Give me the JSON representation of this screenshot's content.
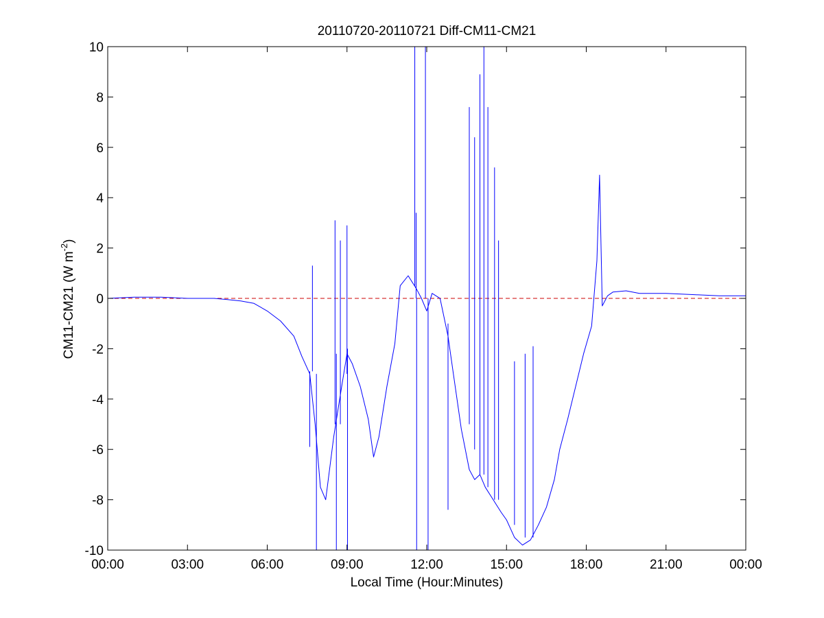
{
  "chart_data": {
    "type": "line",
    "title": "20110720-20110721 Diff-CM11-CM21",
    "xlabel": "Local Time (Hour:Minutes)",
    "ylabel": {
      "main": "CM11-CM21 (W m",
      "sup": "-2",
      "close": ")"
    },
    "xlim": [
      0,
      24
    ],
    "ylim": [
      -10,
      10
    ],
    "x_ticks": [
      {
        "value": 0,
        "label": "00:00"
      },
      {
        "value": 3,
        "label": "03:00"
      },
      {
        "value": 6,
        "label": "06:00"
      },
      {
        "value": 9,
        "label": "09:00"
      },
      {
        "value": 12,
        "label": "12:00"
      },
      {
        "value": 15,
        "label": "15:00"
      },
      {
        "value": 18,
        "label": "18:00"
      },
      {
        "value": 21,
        "label": "21:00"
      },
      {
        "value": 24,
        "label": "00:00"
      }
    ],
    "y_ticks": [
      {
        "value": 10,
        "label": "10"
      },
      {
        "value": 8,
        "label": "8"
      },
      {
        "value": 6,
        "label": "6"
      },
      {
        "value": 4,
        "label": "4"
      },
      {
        "value": 2,
        "label": "2"
      },
      {
        "value": 0,
        "label": "0"
      },
      {
        "value": -2,
        "label": "-2"
      },
      {
        "value": -4,
        "label": "-4"
      },
      {
        "value": -6,
        "label": "-6"
      },
      {
        "value": -8,
        "label": "-8"
      },
      {
        "value": -10,
        "label": "-10"
      }
    ],
    "grid": false,
    "colors": {
      "series": "#0000ff",
      "reference": "#cc0000",
      "axes": "#000000"
    },
    "reference_line": {
      "y": 0,
      "style": "dashed"
    },
    "series": [
      {
        "x": [
          0,
          1,
          2,
          3,
          4,
          4.5,
          5,
          5.5,
          6,
          6.5,
          7,
          7.3,
          7.6,
          7.8,
          8,
          8.2,
          8.5,
          8.8,
          9,
          9.2,
          9.5,
          9.8,
          10,
          10.2,
          10.5,
          10.8,
          11,
          11.3,
          11.6,
          11.8,
          12,
          12.2,
          12.5,
          12.8,
          13,
          13.3,
          13.6,
          13.8,
          14,
          14.2,
          14.5,
          14.8,
          15,
          15.3,
          15.6,
          15.9,
          16.2,
          16.5,
          16.8,
          17,
          17.3,
          17.6,
          17.9,
          18.2,
          18.4,
          18.5,
          18.6,
          18.8,
          19,
          19.5,
          20,
          21,
          22,
          23,
          24
        ],
        "y": [
          0.0,
          0.05,
          0.05,
          0.0,
          0.0,
          -0.05,
          -0.1,
          -0.2,
          -0.5,
          -0.9,
          -1.5,
          -2.3,
          -3.0,
          -5.0,
          -7.5,
          -8.0,
          -5.5,
          -3.5,
          -2.2,
          -2.6,
          -3.5,
          -4.8,
          -6.3,
          -5.5,
          -3.5,
          -1.8,
          0.5,
          0.9,
          0.4,
          0.0,
          -0.5,
          0.2,
          0.0,
          -1.5,
          -3.0,
          -5.2,
          -6.8,
          -7.2,
          -7.0,
          -7.5,
          -8.0,
          -8.5,
          -8.8,
          -9.5,
          -9.8,
          -9.6,
          -9.0,
          -8.3,
          -7.2,
          -6.0,
          -4.8,
          -3.5,
          -2.2,
          -1.1,
          1.5,
          4.9,
          -0.3,
          0.1,
          0.25,
          0.3,
          0.2,
          0.2,
          0.15,
          0.1,
          0.1
        ]
      },
      {
        "note_spikes": "",
        "spikes": [
          {
            "x": 7.6,
            "y0": -2.9,
            "y1": -5.9
          },
          {
            "x": 7.7,
            "y0": -2.9,
            "y1": 1.3
          },
          {
            "x": 7.85,
            "y0": -3.0,
            "y1": -10
          },
          {
            "x": 8.55,
            "y0": -5.0,
            "y1": 3.1
          },
          {
            "x": 8.6,
            "y0": -2.2,
            "y1": -10
          },
          {
            "x": 8.75,
            "y0": -5.0,
            "y1": 2.3
          },
          {
            "x": 9.0,
            "y0": -3.0,
            "y1": 2.9
          },
          {
            "x": 9.02,
            "y0": -2.0,
            "y1": -10
          },
          {
            "x": 11.55,
            "y0": 0.5,
            "y1": 10
          },
          {
            "x": 11.6,
            "y0": 0.0,
            "y1": 3.4
          },
          {
            "x": 11.62,
            "y0": 0.0,
            "y1": -10
          },
          {
            "x": 11.95,
            "y0": 0.0,
            "y1": 10
          },
          {
            "x": 12.05,
            "y0": 0.0,
            "y1": -10
          },
          {
            "x": 12.8,
            "y0": -1.0,
            "y1": -8.4
          },
          {
            "x": 13.6,
            "y0": -5.0,
            "y1": 7.6
          },
          {
            "x": 13.8,
            "y0": -6.0,
            "y1": 6.4
          },
          {
            "x": 14.0,
            "y0": -7.0,
            "y1": 8.9
          },
          {
            "x": 14.15,
            "y0": -7.0,
            "y1": 10
          },
          {
            "x": 14.3,
            "y0": -7.5,
            "y1": 7.6
          },
          {
            "x": 14.55,
            "y0": -8.0,
            "y1": 5.2
          },
          {
            "x": 14.7,
            "y0": -8.0,
            "y1": 2.3
          },
          {
            "x": 15.3,
            "y0": -9.0,
            "y1": -2.5
          },
          {
            "x": 15.7,
            "y0": -9.5,
            "y1": -2.2
          },
          {
            "x": 16.0,
            "y0": -9.5,
            "y1": -1.9
          }
        ]
      }
    ]
  }
}
